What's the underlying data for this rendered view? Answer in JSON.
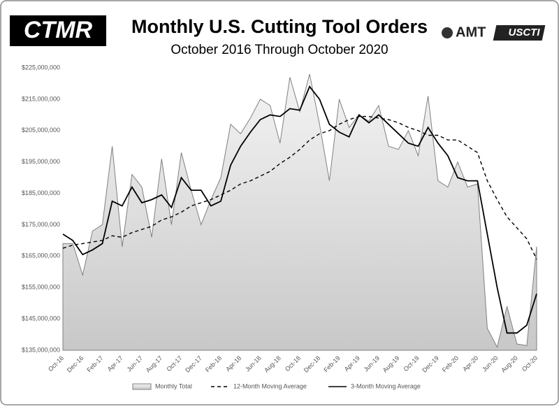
{
  "logos": [
    "CTMR",
    "AMT",
    "USCTI"
  ],
  "chart_data": {
    "type": "line",
    "title": "Monthly U.S. Cutting Tool Orders",
    "subtitle": "October 2016 Through October 2020",
    "categories": [
      "Oct-16",
      null,
      "Dec-16",
      null,
      "Feb-17",
      null,
      "Apr-17",
      null,
      "Jun-17",
      null,
      "Aug-17",
      null,
      "Oct-17",
      null,
      "Dec-17",
      null,
      "Feb-18",
      null,
      "Apr-18",
      null,
      "Jun-18",
      null,
      "Aug-18",
      null,
      "Oct-18",
      null,
      "Dec-18",
      null,
      "Feb-19",
      null,
      "Apr-19",
      null,
      "Jun-19",
      null,
      "Aug-19",
      null,
      "Oct-19",
      null,
      "Dec-19",
      null,
      "Feb-20",
      null,
      "Apr-20",
      null,
      "Jun-20",
      null,
      "Aug-20",
      null,
      "Oct-20"
    ],
    "ylim": [
      135000000,
      225000000
    ],
    "yticks": [
      {
        "value": 135000000,
        "label": "$135,000,000"
      },
      {
        "value": 145000000,
        "label": "$145,000,000"
      },
      {
        "value": 155000000,
        "label": "$155,000,000"
      },
      {
        "value": 165000000,
        "label": "$165,000,000"
      },
      {
        "value": 175000000,
        "label": "$175,000,000"
      },
      {
        "value": 185000000,
        "label": "$185,000,000"
      },
      {
        "value": 195000000,
        "label": "$195,000,000"
      },
      {
        "value": 205000000,
        "label": "$205,000,000"
      },
      {
        "value": 215000000,
        "label": "$215,000,000"
      },
      {
        "value": 225000000,
        "label": "$225,000,000"
      }
    ],
    "grid": false,
    "series": [
      {
        "name": "Monthly Total",
        "color": "#808080",
        "fill": true,
        "line_style": "solid",
        "values": [
          169000000,
          169000000,
          159000000,
          173000000,
          175000000,
          200000000,
          168000000,
          191000000,
          187000000,
          171000000,
          196000000,
          175000000,
          198000000,
          186000000,
          175000000,
          183000000,
          190000000,
          207000000,
          204000000,
          209000000,
          215000000,
          213000000,
          201000000,
          222000000,
          211000000,
          223000000,
          207000000,
          189000000,
          215000000,
          206000000,
          210000000,
          208000000,
          213000000,
          200000000,
          199000000,
          205000000,
          197000000,
          216000000,
          189000000,
          187000000,
          195000000,
          187000000,
          188000000,
          142000000,
          136000000,
          149000000,
          137000000,
          136500000,
          168000000
        ]
      },
      {
        "name": "12-Month Moving Average",
        "color": "#000000",
        "fill": false,
        "line_style": "dashed",
        "values": [
          167500000,
          168500000,
          169000000,
          169500000,
          170000000,
          171500000,
          171000000,
          172500000,
          173500000,
          174500000,
          176500000,
          177500000,
          179000000,
          181000000,
          182000000,
          183000000,
          184500000,
          186000000,
          188000000,
          189000000,
          190500000,
          192000000,
          194500000,
          196500000,
          199000000,
          202000000,
          204000000,
          205000000,
          207000000,
          208500000,
          209500000,
          209500000,
          209000000,
          208500000,
          207500000,
          206000000,
          205000000,
          203500000,
          203500000,
          202000000,
          202000000,
          200000000,
          198000000,
          189000000,
          183000000,
          177500000,
          174000000,
          170500000,
          164000000
        ]
      },
      {
        "name": "3-Month Moving Average",
        "color": "#000000",
        "fill": false,
        "line_style": "solid",
        "values": [
          172000000,
          170000000,
          165500000,
          167000000,
          169000000,
          182500000,
          181000000,
          187000000,
          182000000,
          183000000,
          184500000,
          180500000,
          190000000,
          186000000,
          186000000,
          181000000,
          182500000,
          194000000,
          200000000,
          204500000,
          208500000,
          210000000,
          209500000,
          212000000,
          211500000,
          219000000,
          215000000,
          207000000,
          204500000,
          203000000,
          210000000,
          207500000,
          210000000,
          207000000,
          204000000,
          201000000,
          200000000,
          206000000,
          201000000,
          197000000,
          190000000,
          189000000,
          189000000,
          172000000,
          155000000,
          140500000,
          140500000,
          143000000,
          153000000
        ]
      }
    ]
  }
}
